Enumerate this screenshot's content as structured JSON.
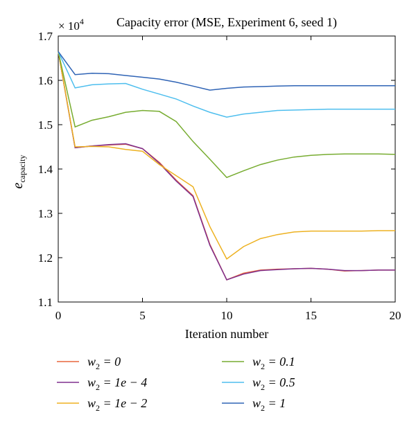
{
  "chart_data": {
    "type": "line",
    "title": "Capacity error (MSE, Experiment 6, seed 1)",
    "xlabel": "Iteration number",
    "ylabel": {
      "base": "e",
      "subscript": "capacity"
    },
    "y_multiplier": {
      "base": "× 10",
      "exponent": "4"
    },
    "xlim": [
      0,
      20
    ],
    "ylim": [
      1.1,
      1.7
    ],
    "x_ticks": [
      0,
      5,
      10,
      15,
      20
    ],
    "y_ticks": [
      1.1,
      1.2,
      1.3,
      1.4,
      1.5,
      1.6,
      1.7
    ],
    "x_tick_labels": [
      "0",
      "5",
      "10",
      "15",
      "20"
    ],
    "y_tick_labels": [
      "1.1",
      "1.2",
      "1.3",
      "1.4",
      "1.5",
      "1.6",
      "1.7"
    ],
    "grid": false,
    "legend_position": "bottom",
    "x": [
      0,
      1,
      2,
      3,
      4,
      5,
      6,
      7,
      8,
      9,
      10,
      11,
      12,
      13,
      14,
      15,
      16,
      17,
      18,
      19,
      20
    ],
    "series": [
      {
        "name": {
          "w": "w",
          "sub": "2",
          "rest": " = 0"
        },
        "color": "#e8663d",
        "values": [
          1.665,
          1.448,
          1.452,
          1.454,
          1.456,
          1.446,
          1.415,
          1.375,
          1.34,
          1.23,
          1.15,
          1.165,
          1.172,
          1.174,
          1.175,
          1.176,
          1.174,
          1.17,
          1.171,
          1.172,
          1.172
        ]
      },
      {
        "name": {
          "w": "w",
          "sub": "2",
          "rest": " = 1e − 4"
        },
        "color": "#7e2f8e",
        "values": [
          1.665,
          1.448,
          1.452,
          1.455,
          1.457,
          1.446,
          1.413,
          1.373,
          1.338,
          1.228,
          1.15,
          1.163,
          1.171,
          1.173,
          1.175,
          1.176,
          1.174,
          1.171,
          1.171,
          1.172,
          1.172
        ]
      },
      {
        "name": {
          "w": "w",
          "sub": "2",
          "rest": " = 1e − 2"
        },
        "color": "#edb120",
        "values": [
          1.665,
          1.45,
          1.451,
          1.45,
          1.444,
          1.44,
          1.41,
          1.385,
          1.36,
          1.27,
          1.197,
          1.225,
          1.243,
          1.252,
          1.258,
          1.26,
          1.26,
          1.26,
          1.26,
          1.261,
          1.261
        ]
      },
      {
        "name": {
          "w": "w",
          "sub": "2",
          "rest": " = 0.1"
        },
        "color": "#77ac30",
        "values": [
          1.665,
          1.495,
          1.51,
          1.518,
          1.528,
          1.532,
          1.53,
          1.507,
          1.462,
          1.422,
          1.381,
          1.396,
          1.41,
          1.42,
          1.427,
          1.431,
          1.433,
          1.434,
          1.434,
          1.434,
          1.433
        ]
      },
      {
        "name": {
          "w": "w",
          "sub": "2",
          "rest": " = 0.5"
        },
        "color": "#4dbeee",
        "values": [
          1.665,
          1.583,
          1.59,
          1.592,
          1.593,
          1.58,
          1.569,
          1.558,
          1.542,
          1.528,
          1.517,
          1.524,
          1.528,
          1.532,
          1.533,
          1.534,
          1.535,
          1.535,
          1.535,
          1.535,
          1.535
        ]
      },
      {
        "name": {
          "w": "w",
          "sub": "2",
          "rest": " = 1"
        },
        "color": "#2e63b5",
        "values": [
          1.665,
          1.613,
          1.616,
          1.615,
          1.611,
          1.607,
          1.603,
          1.596,
          1.587,
          1.578,
          1.582,
          1.585,
          1.586,
          1.587,
          1.588,
          1.588,
          1.588,
          1.588,
          1.588,
          1.588,
          1.588
        ]
      }
    ]
  }
}
